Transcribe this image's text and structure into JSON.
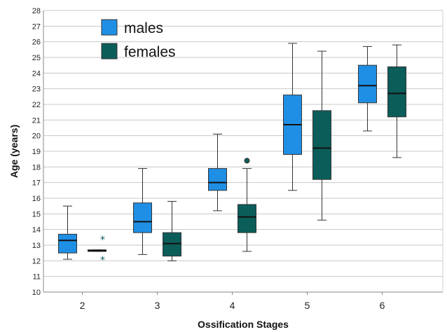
{
  "chart_data": {
    "type": "boxplot",
    "xlabel": "Ossification Stages",
    "ylabel": "Age (years)",
    "ylim": [
      10,
      28
    ],
    "yticks": [
      10,
      11,
      12,
      13,
      14,
      15,
      16,
      17,
      18,
      19,
      20,
      21,
      22,
      23,
      24,
      25,
      26,
      27,
      28
    ],
    "grid": true,
    "legend_position": "top-left",
    "categories": [
      "2",
      "3",
      "4",
      "5",
      "6"
    ],
    "series": [
      {
        "name": "males",
        "color": "#1f8fe5",
        "boxes": [
          {
            "min": 12.1,
            "q1": 12.5,
            "median": 13.3,
            "q3": 13.7,
            "max": 15.5,
            "outliers": [],
            "extremes": []
          },
          {
            "min": 12.4,
            "q1": 13.8,
            "median": 14.5,
            "q3": 15.7,
            "max": 17.9,
            "outliers": [],
            "extremes": []
          },
          {
            "min": 15.2,
            "q1": 16.5,
            "median": 17.0,
            "q3": 17.9,
            "max": 20.1,
            "outliers": [],
            "extremes": []
          },
          {
            "min": 16.5,
            "q1": 18.8,
            "median": 20.7,
            "q3": 22.6,
            "max": 25.9,
            "outliers": [],
            "extremes": []
          },
          {
            "min": 20.3,
            "q1": 22.1,
            "median": 23.2,
            "q3": 24.5,
            "max": 25.7,
            "outliers": [],
            "extremes": []
          }
        ]
      },
      {
        "name": "females",
        "color": "#0b5d5a",
        "boxes": [
          {
            "min": 12.6,
            "q1": 12.6,
            "median": 12.65,
            "q3": 12.7,
            "max": 12.7,
            "outliers": [],
            "extremes": [
              13.4,
              12.1
            ]
          },
          {
            "min": 12.0,
            "q1": 12.3,
            "median": 13.1,
            "q3": 13.8,
            "max": 15.8,
            "outliers": [],
            "extremes": []
          },
          {
            "min": 12.6,
            "q1": 13.8,
            "median": 14.8,
            "q3": 15.6,
            "max": 17.9,
            "outliers": [
              18.4
            ],
            "extremes": []
          },
          {
            "min": 14.6,
            "q1": 17.2,
            "median": 19.2,
            "q3": 21.6,
            "max": 25.4,
            "outliers": [],
            "extremes": []
          },
          {
            "min": 18.6,
            "q1": 21.2,
            "median": 22.7,
            "q3": 24.4,
            "max": 25.8,
            "outliers": [],
            "extremes": []
          }
        ]
      }
    ]
  }
}
